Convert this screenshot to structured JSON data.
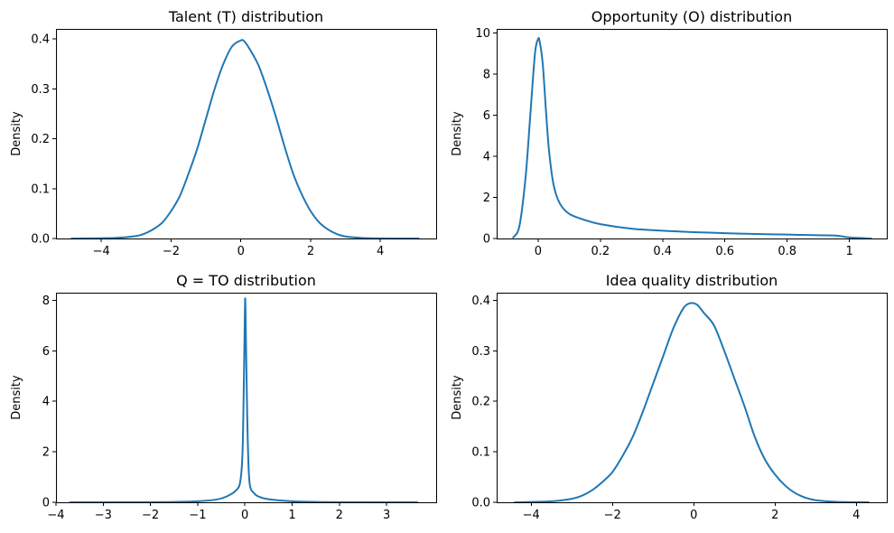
{
  "colors": {
    "line": "#1f77b4"
  },
  "chart_data": [
    {
      "type": "line",
      "title": "Talent (T) distribution",
      "xlabel": "",
      "ylabel": "Density",
      "xlim": [
        -5.3,
        5.6
      ],
      "ylim": [
        0,
        0.42
      ],
      "xticks": [
        -4,
        -2,
        0,
        2,
        4
      ],
      "yticks": [
        0.0,
        0.1,
        0.2,
        0.3,
        0.4
      ],
      "ytick_decimals": 1,
      "grid": false,
      "series": [
        {
          "x": [
            -4.85,
            -4.0,
            -3.5,
            -3.0,
            -2.75,
            -2.5,
            -2.25,
            -2.0,
            -1.75,
            -1.5,
            -1.25,
            -1.0,
            -0.75,
            -0.5,
            -0.25,
            0.0,
            0.1,
            0.25,
            0.5,
            0.75,
            1.0,
            1.25,
            1.5,
            1.75,
            2.0,
            2.25,
            2.5,
            2.75,
            3.0,
            3.5,
            4.0,
            5.1
          ],
          "y": [
            0.0,
            0.0005,
            0.0015,
            0.005,
            0.01,
            0.019,
            0.032,
            0.055,
            0.085,
            0.13,
            0.18,
            0.24,
            0.3,
            0.35,
            0.385,
            0.397,
            0.395,
            0.38,
            0.348,
            0.3,
            0.245,
            0.185,
            0.13,
            0.088,
            0.055,
            0.032,
            0.018,
            0.009,
            0.004,
            0.001,
            0.0002,
            0.0
          ]
        }
      ]
    },
    {
      "type": "line",
      "title": "Opportunity (O) distribution",
      "xlabel": "",
      "ylabel": "Density",
      "xlim": [
        -0.133,
        1.12
      ],
      "ylim": [
        0,
        10.2
      ],
      "xticks": [
        0.0,
        0.2,
        0.4,
        0.6,
        0.8,
        1.0
      ],
      "yticks": [
        0,
        2,
        4,
        6,
        8,
        10
      ],
      "ytick_decimals": 1,
      "ytick_integer": true,
      "grid": false,
      "series": [
        {
          "x": [
            -0.08,
            -0.06,
            -0.04,
            -0.025,
            -0.01,
            0.0,
            0.005,
            0.015,
            0.025,
            0.035,
            0.05,
            0.07,
            0.1,
            0.15,
            0.2,
            0.3,
            0.4,
            0.5,
            0.6,
            0.7,
            0.8,
            0.9,
            0.96,
            1.0,
            1.07
          ],
          "y": [
            0.05,
            0.6,
            3.0,
            6.0,
            9.0,
            9.7,
            9.6,
            8.5,
            6.3,
            4.3,
            2.6,
            1.7,
            1.2,
            0.9,
            0.7,
            0.48,
            0.38,
            0.31,
            0.26,
            0.22,
            0.19,
            0.16,
            0.14,
            0.05,
            0.0
          ]
        }
      ]
    },
    {
      "type": "line",
      "title": "Q = TO distribution",
      "xlabel": "",
      "ylabel": "Density",
      "xlim": [
        -4.0,
        4.05
      ],
      "ylim": [
        0,
        8.3
      ],
      "xticks": [
        -4,
        -3,
        -2,
        -1,
        0,
        1,
        2,
        3
      ],
      "yticks": [
        0,
        2,
        4,
        6,
        8
      ],
      "ytick_integer": true,
      "grid": false,
      "series": [
        {
          "x": [
            -3.7,
            -3.0,
            -2.0,
            -1.5,
            -1.0,
            -0.6,
            -0.4,
            -0.2,
            -0.1,
            -0.05,
            -0.02,
            0.0,
            0.01,
            0.03,
            0.06,
            0.1,
            0.2,
            0.3,
            0.5,
            1.0,
            1.5,
            2.0,
            3.0,
            3.65
          ],
          "y": [
            0.0,
            0.002,
            0.005,
            0.015,
            0.04,
            0.11,
            0.22,
            0.45,
            0.8,
            2.0,
            5.0,
            7.6,
            7.9,
            5.5,
            2.5,
            0.75,
            0.35,
            0.22,
            0.12,
            0.04,
            0.015,
            0.006,
            0.002,
            0.0
          ]
        }
      ]
    },
    {
      "type": "line",
      "title": "Idea quality distribution",
      "xlabel": "",
      "ylabel": "Density",
      "xlim": [
        -4.85,
        4.75
      ],
      "ylim": [
        0,
        0.415
      ],
      "xticks": [
        -4,
        -2,
        0,
        2,
        4
      ],
      "yticks": [
        0.0,
        0.1,
        0.2,
        0.3,
        0.4
      ],
      "ytick_decimals": 1,
      "grid": false,
      "series": [
        {
          "x": [
            -4.4,
            -3.5,
            -3.0,
            -2.75,
            -2.5,
            -2.25,
            -2.0,
            -1.75,
            -1.5,
            -1.25,
            -1.0,
            -0.75,
            -0.5,
            -0.25,
            -0.1,
            0.0,
            0.1,
            0.25,
            0.5,
            0.75,
            1.0,
            1.25,
            1.5,
            1.75,
            2.0,
            2.25,
            2.5,
            2.75,
            3.0,
            3.5,
            4.3
          ],
          "y": [
            0.0,
            0.002,
            0.007,
            0.013,
            0.024,
            0.04,
            0.06,
            0.092,
            0.13,
            0.18,
            0.235,
            0.29,
            0.345,
            0.385,
            0.394,
            0.394,
            0.39,
            0.375,
            0.35,
            0.3,
            0.245,
            0.19,
            0.13,
            0.085,
            0.055,
            0.033,
            0.018,
            0.009,
            0.004,
            0.001,
            0.0
          ]
        }
      ]
    }
  ]
}
